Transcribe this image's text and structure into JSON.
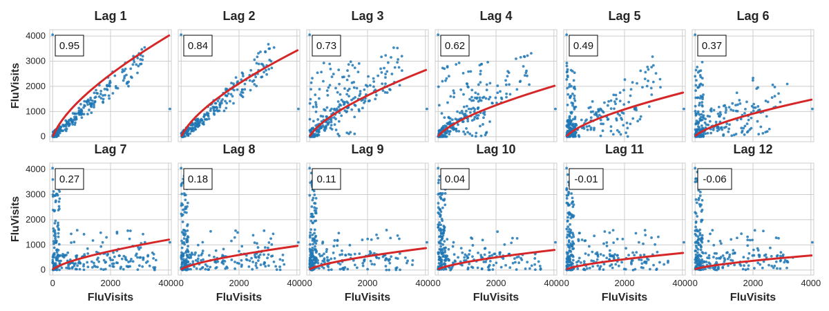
{
  "figure": {
    "xlabel": "FluVisits",
    "ylabel": "FluVisits",
    "colors": {
      "points": "#1f77b4",
      "fit": "#d62728",
      "grid": "#cccccc",
      "text": "#262626"
    }
  },
  "chart_data": {
    "type": "scatter",
    "layout": "2x6 grid of lag plots",
    "xlabel": "FluVisits",
    "ylabel": "FluVisits",
    "xlim": [
      -100,
      4100
    ],
    "ylim": [
      -200,
      4250
    ],
    "xticks": [
      0,
      2000,
      4000
    ],
    "yticks": [
      0,
      1000,
      2000,
      3000,
      4000
    ],
    "grid": true,
    "panels": [
      {
        "title": "Lag 1",
        "corr": "0.95",
        "fit_end": 4020,
        "mode": "tight"
      },
      {
        "title": "Lag 2",
        "corr": "0.84",
        "fit_end": 3430,
        "mode": "tight"
      },
      {
        "title": "Lag 3",
        "corr": "0.73",
        "fit_end": 2650,
        "mode": "medium"
      },
      {
        "title": "Lag 4",
        "corr": "0.62",
        "fit_end": 2020,
        "mode": "medium"
      },
      {
        "title": "Lag 5",
        "corr": "0.49",
        "fit_end": 1750,
        "mode": "loose"
      },
      {
        "title": "Lag 6",
        "corr": "0.37",
        "fit_end": 1470,
        "mode": "loose"
      },
      {
        "title": "Lag 7",
        "corr": "0.27",
        "fit_end": 1210,
        "mode": "spread"
      },
      {
        "title": "Lag 8",
        "corr": "0.18",
        "fit_end": 960,
        "mode": "spread"
      },
      {
        "title": "Lag 9",
        "corr": "0.11",
        "fit_end": 870,
        "mode": "spread"
      },
      {
        "title": "Lag 10",
        "corr": "0.04",
        "fit_end": 800,
        "mode": "spread"
      },
      {
        "title": "Lag 11",
        "corr": "-0.01",
        "fit_end": 680,
        "mode": "spread"
      },
      {
        "title": "Lag 12",
        "corr": "-0.06",
        "fit_end": 580,
        "mode": "spread"
      }
    ]
  }
}
